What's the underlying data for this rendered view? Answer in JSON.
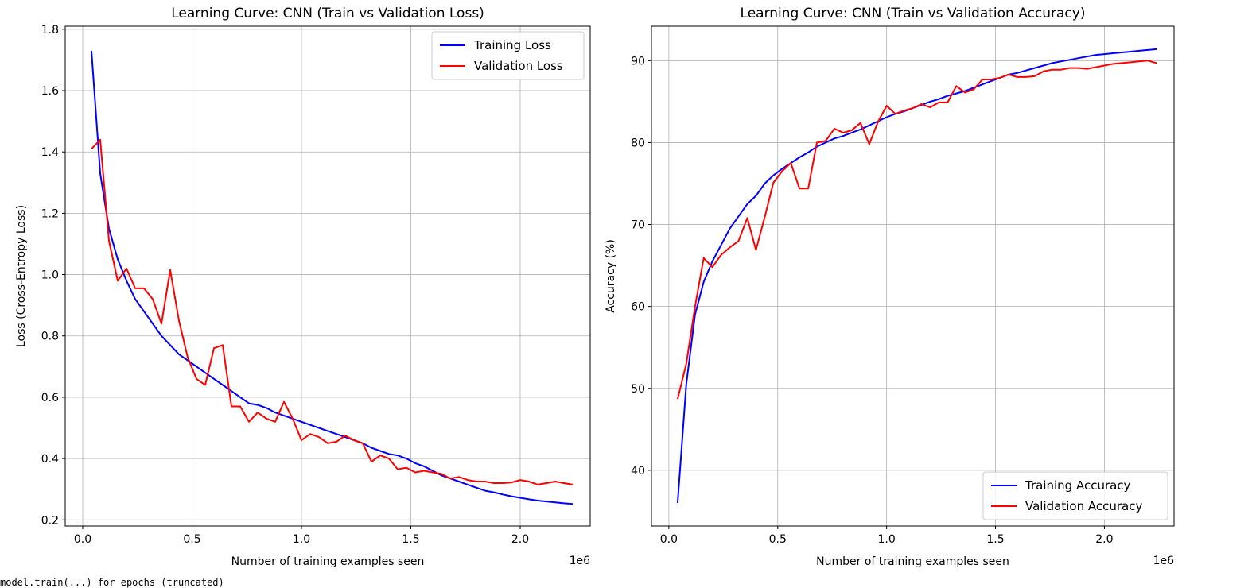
{
  "footer_text": "model.train(...) for epochs (truncated)",
  "chart_data": [
    {
      "type": "line",
      "title": "Learning Curve: CNN (Train vs Validation Loss)",
      "xlabel": "Number of training examples seen",
      "ylabel": "Loss (Cross-Entropy Loss)",
      "x_offset_label": "1e6",
      "xlim": [
        -0.08,
        2.32
      ],
      "ylim": [
        0.18,
        1.81
      ],
      "xticks": [
        0.0,
        0.5,
        1.0,
        1.5,
        2.0
      ],
      "xtick_labels": [
        "0.0",
        "0.5",
        "1.0",
        "1.5",
        "2.0"
      ],
      "yticks": [
        0.2,
        0.4,
        0.6,
        0.8,
        1.0,
        1.2,
        1.4,
        1.6,
        1.8
      ],
      "ytick_labels": [
        "0.2",
        "0.4",
        "0.6",
        "0.8",
        "1.0",
        "1.2",
        "1.4",
        "1.6",
        "1.8"
      ],
      "grid": true,
      "legend_position": "top-right",
      "x": [
        0.04,
        0.08,
        0.12,
        0.16,
        0.2,
        0.24,
        0.28,
        0.32,
        0.36,
        0.4,
        0.44,
        0.48,
        0.52,
        0.56,
        0.6,
        0.64,
        0.68,
        0.72,
        0.76,
        0.8,
        0.84,
        0.88,
        0.92,
        0.96,
        1.0,
        1.04,
        1.08,
        1.12,
        1.16,
        1.2,
        1.24,
        1.28,
        1.32,
        1.36,
        1.4,
        1.44,
        1.48,
        1.52,
        1.56,
        1.6,
        1.64,
        1.68,
        1.72,
        1.76,
        1.8,
        1.84,
        1.88,
        1.92,
        1.96,
        2.0,
        2.04,
        2.08,
        2.12,
        2.16,
        2.2,
        2.24
      ],
      "series": [
        {
          "name": "Training Loss",
          "color": "#0000ff",
          "values": [
            1.73,
            1.33,
            1.15,
            1.05,
            0.98,
            0.92,
            0.88,
            0.84,
            0.8,
            0.77,
            0.74,
            0.72,
            0.7,
            0.68,
            0.66,
            0.64,
            0.62,
            0.6,
            0.58,
            0.575,
            0.565,
            0.55,
            0.54,
            0.53,
            0.52,
            0.51,
            0.5,
            0.49,
            0.48,
            0.47,
            0.46,
            0.45,
            0.435,
            0.425,
            0.415,
            0.41,
            0.4,
            0.385,
            0.375,
            0.36,
            0.345,
            0.335,
            0.325,
            0.315,
            0.305,
            0.295,
            0.29,
            0.283,
            0.277,
            0.272,
            0.267,
            0.263,
            0.26,
            0.257,
            0.254,
            0.252
          ]
        },
        {
          "name": "Validation Loss",
          "color": "#ff0000",
          "values": [
            1.41,
            1.44,
            1.11,
            0.98,
            1.02,
            0.955,
            0.955,
            0.92,
            0.84,
            1.015,
            0.85,
            0.73,
            0.66,
            0.64,
            0.76,
            0.77,
            0.57,
            0.57,
            0.52,
            0.55,
            0.53,
            0.52,
            0.585,
            0.53,
            0.46,
            0.48,
            0.47,
            0.45,
            0.455,
            0.475,
            0.46,
            0.45,
            0.39,
            0.41,
            0.4,
            0.365,
            0.37,
            0.355,
            0.36,
            0.355,
            0.35,
            0.335,
            0.34,
            0.33,
            0.325,
            0.325,
            0.32,
            0.32,
            0.322,
            0.33,
            0.325,
            0.315,
            0.32,
            0.325,
            0.32,
            0.315
          ]
        }
      ]
    },
    {
      "type": "line",
      "title": "Learning Curve: CNN (Train vs Validation Accuracy)",
      "xlabel": "Number of training examples seen",
      "ylabel": "Accuracy (%)",
      "x_offset_label": "1e6",
      "xlim": [
        -0.08,
        2.32
      ],
      "ylim": [
        33.2,
        94.2
      ],
      "xticks": [
        0.0,
        0.5,
        1.0,
        1.5,
        2.0
      ],
      "xtick_labels": [
        "0.0",
        "0.5",
        "1.0",
        "1.5",
        "2.0"
      ],
      "yticks": [
        40,
        50,
        60,
        70,
        80,
        90
      ],
      "ytick_labels": [
        "40",
        "50",
        "60",
        "70",
        "80",
        "90"
      ],
      "grid": true,
      "legend_position": "bottom-right",
      "x": [
        0.04,
        0.08,
        0.12,
        0.16,
        0.2,
        0.24,
        0.28,
        0.32,
        0.36,
        0.4,
        0.44,
        0.48,
        0.52,
        0.56,
        0.6,
        0.64,
        0.68,
        0.72,
        0.76,
        0.8,
        0.84,
        0.88,
        0.92,
        0.96,
        1.0,
        1.04,
        1.08,
        1.12,
        1.16,
        1.2,
        1.24,
        1.28,
        1.32,
        1.36,
        1.4,
        1.44,
        1.48,
        1.52,
        1.56,
        1.6,
        1.64,
        1.68,
        1.72,
        1.76,
        1.8,
        1.84,
        1.88,
        1.92,
        1.96,
        2.0,
        2.04,
        2.08,
        2.12,
        2.16,
        2.2,
        2.24
      ],
      "series": [
        {
          "name": "Training Accuracy",
          "color": "#0000ff",
          "values": [
            36.0,
            50.5,
            59.0,
            63.0,
            65.5,
            67.5,
            69.5,
            71.0,
            72.5,
            73.5,
            75.0,
            76.0,
            76.8,
            77.5,
            78.2,
            78.8,
            79.5,
            80.0,
            80.5,
            80.8,
            81.2,
            81.6,
            82.1,
            82.6,
            83.1,
            83.5,
            83.8,
            84.2,
            84.6,
            85.0,
            85.3,
            85.7,
            86.0,
            86.3,
            86.7,
            87.1,
            87.5,
            87.9,
            88.3,
            88.5,
            88.8,
            89.1,
            89.4,
            89.7,
            89.9,
            90.1,
            90.3,
            90.5,
            90.7,
            90.8,
            90.9,
            91.0,
            91.1,
            91.2,
            91.3,
            91.4
          ]
        },
        {
          "name": "Validation Accuracy",
          "color": "#ff0000",
          "values": [
            48.7,
            53.0,
            60.0,
            65.9,
            64.8,
            66.3,
            67.2,
            68.0,
            70.8,
            66.9,
            70.9,
            75.1,
            76.5,
            77.5,
            74.4,
            74.4,
            80.0,
            80.2,
            81.7,
            81.2,
            81.5,
            82.4,
            79.8,
            82.5,
            84.5,
            83.5,
            83.9,
            84.2,
            84.7,
            84.3,
            84.9,
            84.9,
            86.9,
            86.1,
            86.5,
            87.7,
            87.7,
            87.9,
            88.3,
            88.0,
            88.0,
            88.1,
            88.7,
            88.9,
            88.9,
            89.1,
            89.1,
            89.0,
            89.2,
            89.4,
            89.6,
            89.7,
            89.8,
            89.9,
            90.0,
            89.7
          ]
        }
      ]
    }
  ]
}
